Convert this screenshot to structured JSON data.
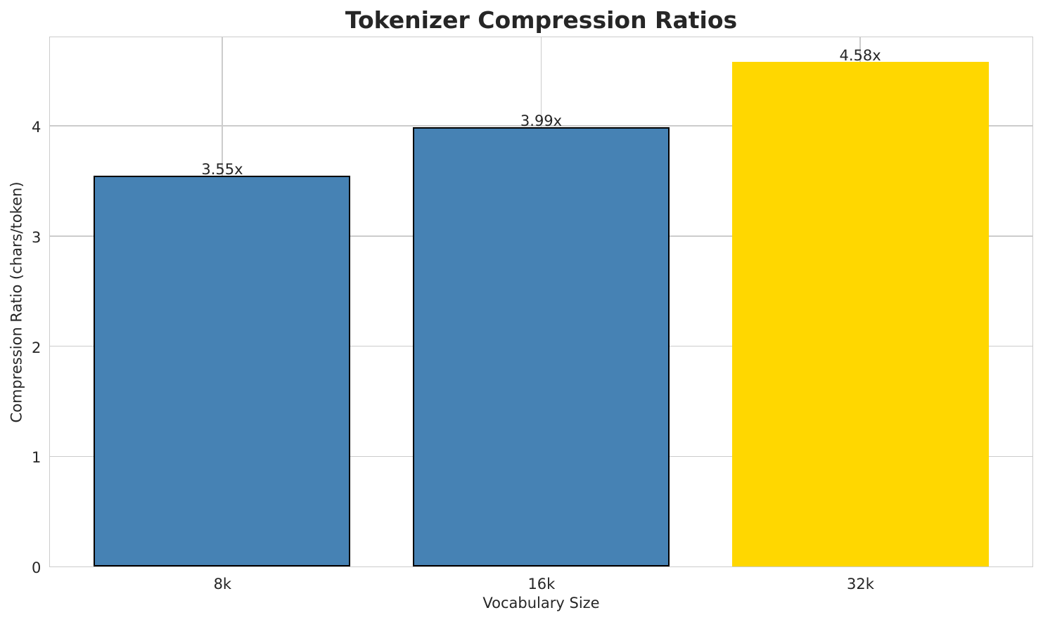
{
  "chart_data": {
    "type": "bar",
    "title": "Tokenizer Compression Ratios",
    "xlabel": "Vocabulary Size",
    "ylabel": "Compression Ratio (chars/token)",
    "categories": [
      "8k",
      "16k",
      "32k"
    ],
    "values": [
      3.55,
      3.99,
      4.58
    ],
    "bar_labels": [
      "3.55x",
      "3.99x",
      "4.58x"
    ],
    "bar_colors": [
      "#4682b4",
      "#4682b4",
      "#ffd700"
    ],
    "bar_edge_colors": [
      "#000000",
      "#000000",
      "none"
    ],
    "bar_edge_width": 2.2,
    "bar_width": 0.805,
    "xlim": [
      -0.54,
      2.54
    ],
    "ylim": [
      0,
      4.805
    ],
    "yticks": [
      0,
      1,
      2,
      3,
      4
    ],
    "grid": true,
    "grid_color": "#cccccc",
    "spine_color": "#cccccc",
    "background_color": "#ffffff",
    "text_color": "#262626",
    "legend": null
  }
}
